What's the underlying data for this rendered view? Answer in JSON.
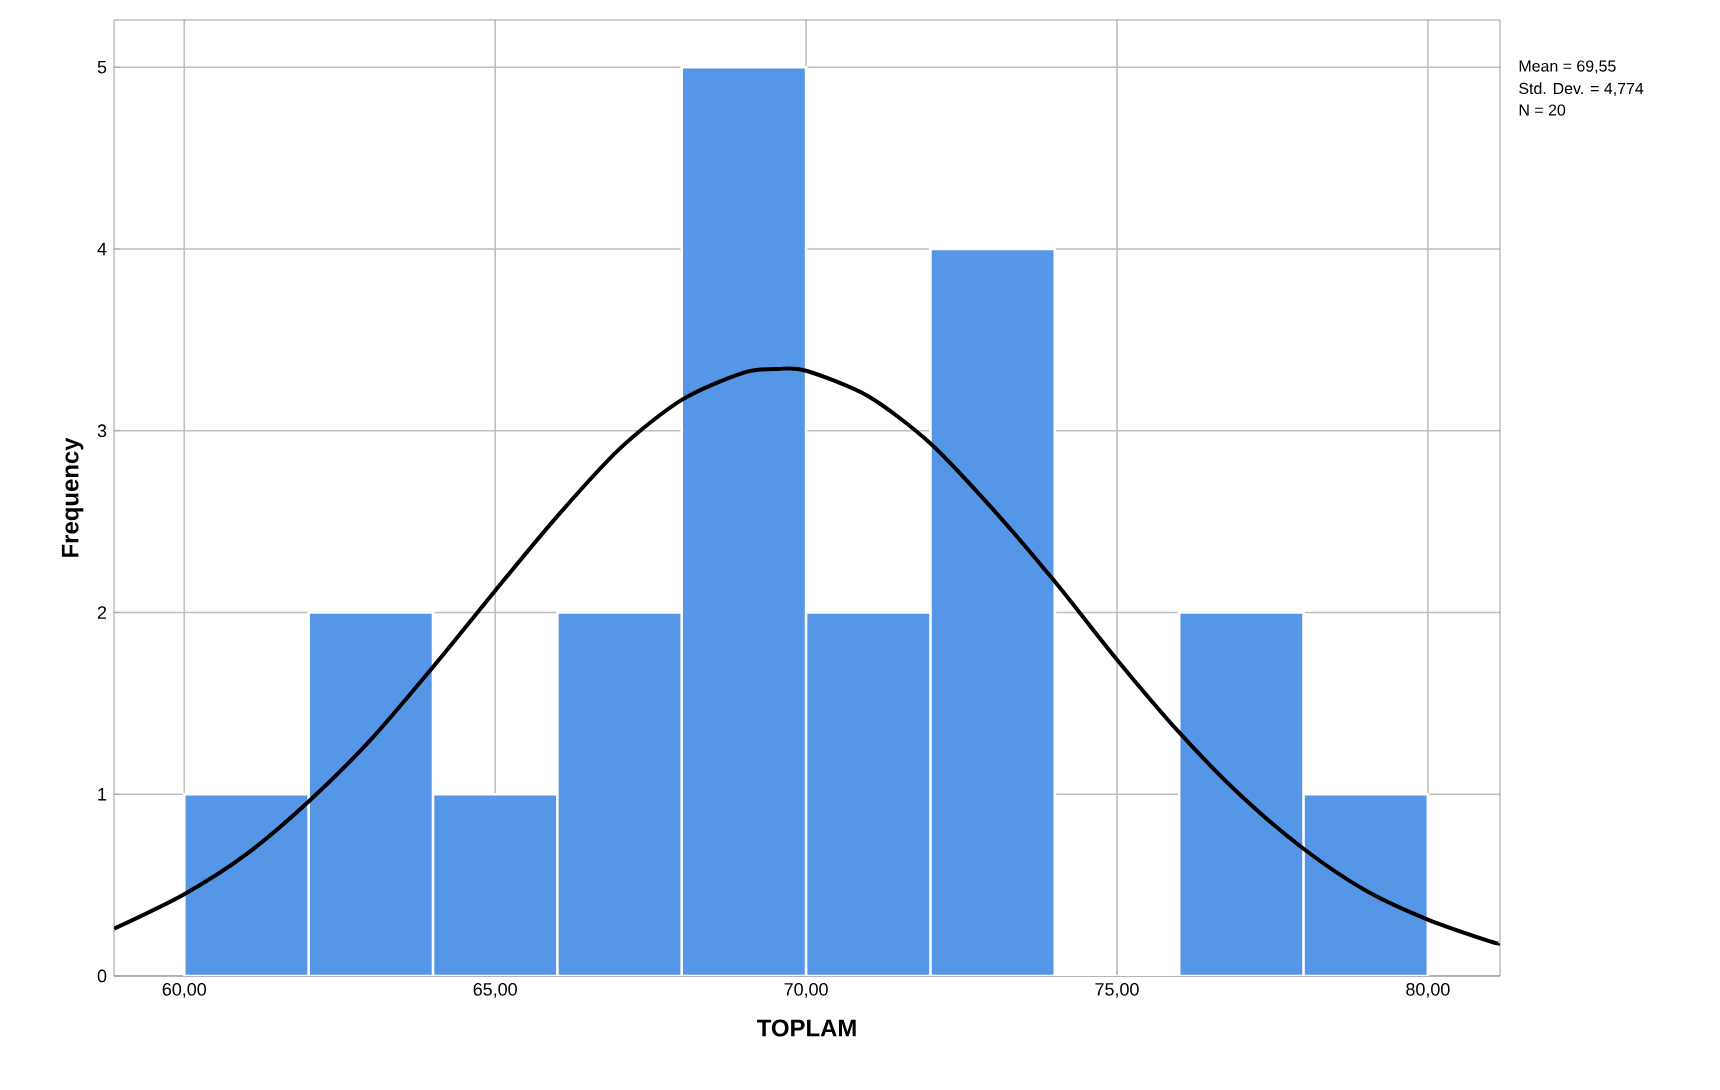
{
  "chart_data": {
    "type": "histogram",
    "xlabel": "TOPLAM",
    "ylabel": "Frequency",
    "annotations": [
      "Mean = 69,55",
      "Std. Dev. = 4,774",
      "N = 20"
    ],
    "series": [
      {
        "color": "#5596e6",
        "bins": [
          60,
          62,
          64,
          66,
          68,
          70,
          72,
          74,
          76,
          78,
          80
        ],
        "values": [
          1,
          2,
          1,
          2,
          5,
          2,
          4,
          0,
          2,
          1
        ]
      },
      {
        "type": "line",
        "color": "#000000",
        "x": [
          58.87,
          60,
          61,
          62,
          63,
          64,
          65,
          66,
          67,
          68,
          69,
          69.55,
          70,
          71,
          72,
          73,
          74,
          75,
          76,
          77,
          78,
          79,
          80,
          81,
          81.16
        ],
        "values": [
          0.26,
          0.45,
          0.67,
          0.96,
          1.3,
          1.7,
          2.12,
          2.53,
          2.9,
          3.17,
          3.32,
          3.34,
          3.33,
          3.19,
          2.93,
          2.57,
          2.17,
          1.74,
          1.34,
          0.99,
          0.7,
          0.47,
          0.31,
          0.19,
          0.18
        ]
      }
    ],
    "xlim": [
      58.87,
      81.16
    ],
    "ylim": [
      0,
      5.26
    ],
    "xticks": [
      {
        "value": 60,
        "label": "60,00"
      },
      {
        "value": 65,
        "label": "65,00"
      },
      {
        "value": 70,
        "label": "70,00"
      },
      {
        "value": 75,
        "label": "75,00"
      },
      {
        "value": 80,
        "label": "80,00"
      }
    ],
    "yticks": [
      0,
      1,
      2,
      3,
      4,
      5
    ],
    "grid": true
  }
}
